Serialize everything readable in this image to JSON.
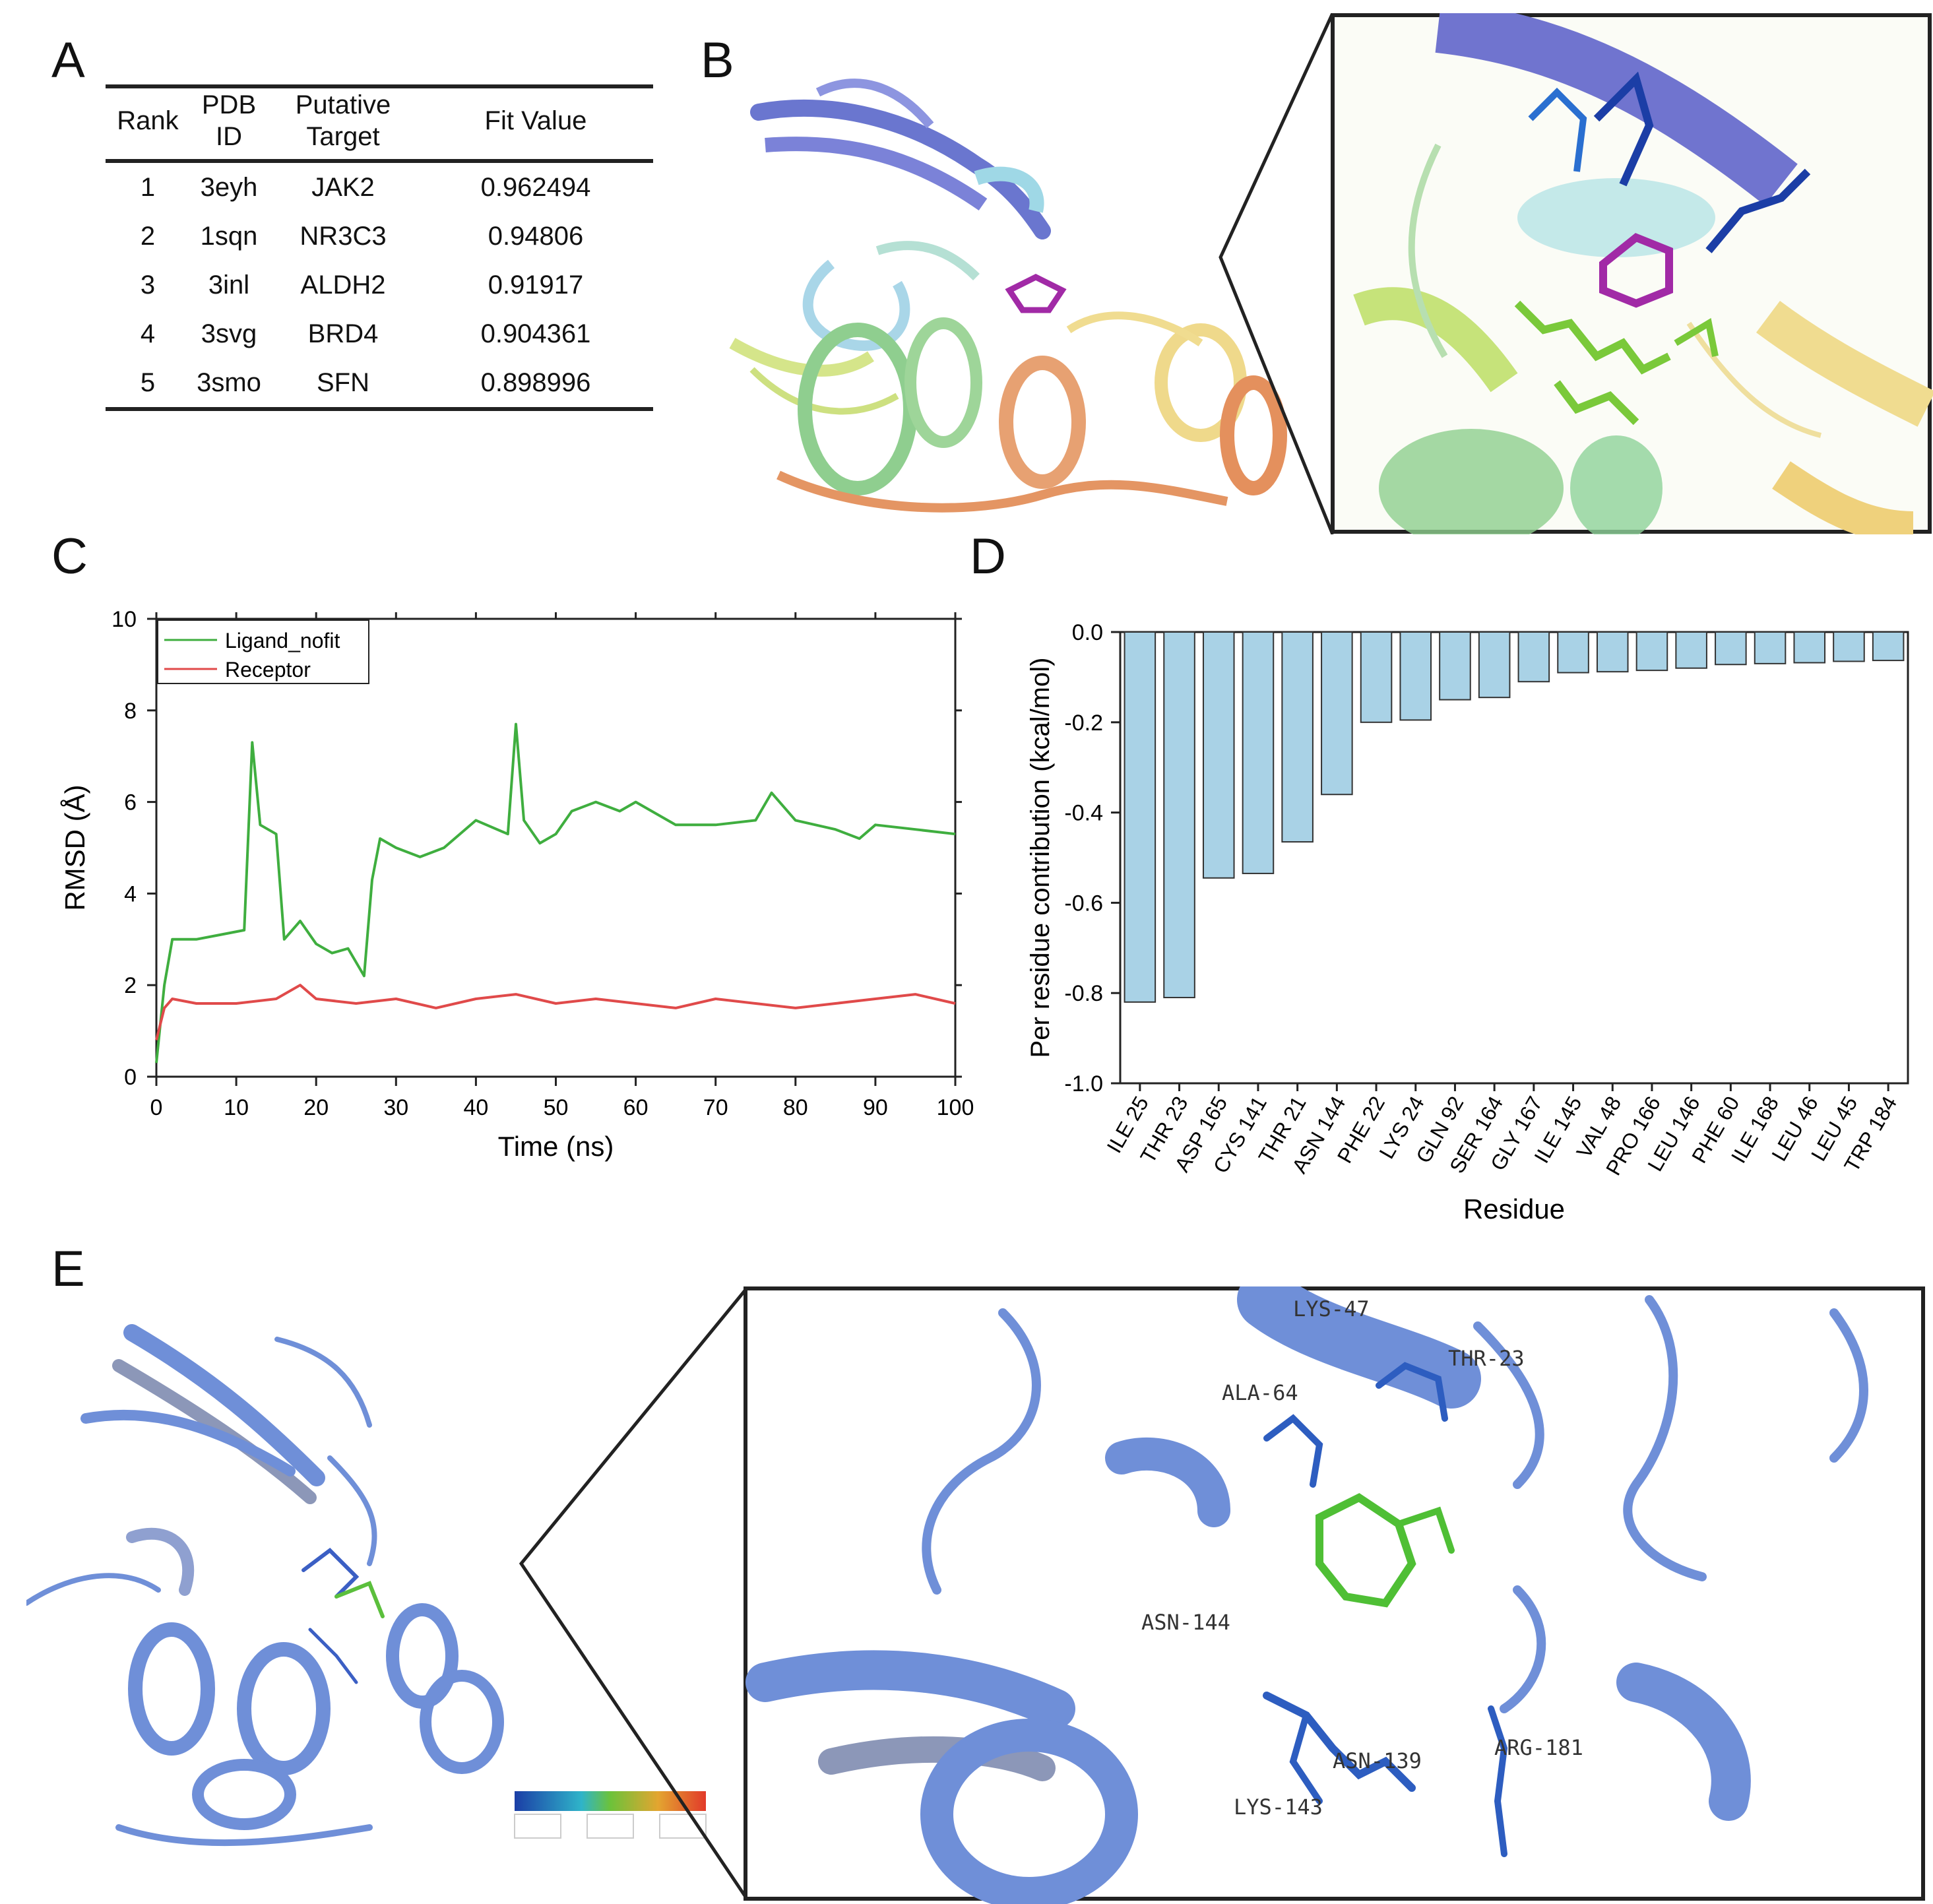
{
  "panels": {
    "a": "A",
    "b": "B",
    "c": "C",
    "d": "D",
    "e": "E"
  },
  "table": {
    "headers": {
      "rank": "Rank",
      "pdb": "PDB ID",
      "target": "Putative Target",
      "fit": "Fit Value"
    },
    "rows": [
      {
        "rank": "1",
        "pdb": "3eyh",
        "target": "JAK2",
        "fit": "0.962494"
      },
      {
        "rank": "2",
        "pdb": "1sqn",
        "target": "NR3C3",
        "fit": "0.94806"
      },
      {
        "rank": "3",
        "pdb": "3inl",
        "target": "ALDH2",
        "fit": "0.91917"
      },
      {
        "rank": "4",
        "pdb": "3svg",
        "target": "BRD4",
        "fit": "0.904361"
      },
      {
        "rank": "5",
        "pdb": "3smo",
        "target": "SFN",
        "fit": "0.898996"
      }
    ]
  },
  "colors": {
    "ligand": "#3fae3f",
    "receptor": "#e04a4a",
    "bar_fill": "#a9d2e6",
    "bar_stroke": "#333333",
    "protein_e": "#6f8fd8",
    "ligand_b": "#a12aa6"
  },
  "chart_data": [
    {
      "type": "line",
      "xlabel": "Time (ns)",
      "ylabel": "RMSD (Å)",
      "xlim": [
        0,
        100
      ],
      "ylim": [
        0,
        10
      ],
      "x_ticks": [
        "0",
        "10",
        "20",
        "30",
        "40",
        "50",
        "60",
        "70",
        "80",
        "90",
        "100"
      ],
      "y_ticks": [
        "0",
        "2",
        "4",
        "6",
        "8",
        "10"
      ],
      "legend": "top-left",
      "series": [
        {
          "name": "Ligand_nofit",
          "x": [
            0,
            1,
            2,
            5,
            8,
            11,
            12,
            13,
            15,
            16,
            18,
            20,
            22,
            24,
            26,
            27,
            28,
            30,
            33,
            36,
            40,
            44,
            45,
            46,
            48,
            50,
            52,
            55,
            58,
            60,
            65,
            70,
            75,
            77,
            80,
            85,
            88,
            90,
            95,
            100
          ],
          "y": [
            0.3,
            2.0,
            3.0,
            3.0,
            3.1,
            3.2,
            7.3,
            5.5,
            5.3,
            3.0,
            3.4,
            2.9,
            2.7,
            2.8,
            2.2,
            4.3,
            5.2,
            5.0,
            4.8,
            5.0,
            5.6,
            5.3,
            7.7,
            5.6,
            5.1,
            5.3,
            5.8,
            6.0,
            5.8,
            6.0,
            5.5,
            5.5,
            5.6,
            6.2,
            5.6,
            5.4,
            5.2,
            5.5,
            5.4,
            5.3
          ]
        },
        {
          "name": "Receptor",
          "x": [
            0,
            1,
            2,
            5,
            10,
            15,
            18,
            20,
            25,
            30,
            35,
            40,
            45,
            50,
            55,
            60,
            65,
            70,
            75,
            80,
            85,
            90,
            95,
            100
          ],
          "y": [
            0.8,
            1.5,
            1.7,
            1.6,
            1.6,
            1.7,
            2.0,
            1.7,
            1.6,
            1.7,
            1.5,
            1.7,
            1.8,
            1.6,
            1.7,
            1.6,
            1.5,
            1.7,
            1.6,
            1.5,
            1.6,
            1.7,
            1.8,
            1.6
          ]
        }
      ]
    },
    {
      "type": "bar",
      "xlabel": "Residue",
      "ylabel": "Per residue contribution (kcal/mol)",
      "ylim": [
        -1.0,
        0.0
      ],
      "y_ticks": [
        "0.0",
        "-0.2",
        "-0.4",
        "-0.6",
        "-0.8",
        "-1.0"
      ],
      "categories": [
        "ILE 25",
        "THR 23",
        "ASP 165",
        "CYS 141",
        "THR 21",
        "ASN 144",
        "PHE 22",
        "LYS 24",
        "GLN 92",
        "SER 164",
        "GLY 167",
        "ILE 145",
        "VAL 48",
        "PRO 166",
        "LEU 146",
        "PHE 60",
        "ILE 168",
        "LEU 46",
        "LEU 45",
        "TRP 184"
      ],
      "values": [
        -0.82,
        -0.81,
        -0.545,
        -0.535,
        -0.465,
        -0.36,
        -0.2,
        -0.195,
        -0.15,
        -0.145,
        -0.11,
        -0.09,
        -0.088,
        -0.085,
        -0.08,
        -0.072,
        -0.07,
        -0.068,
        -0.065,
        -0.063
      ]
    }
  ],
  "residue_labels_e": [
    "LYS-47",
    "THR-23",
    "ALA-64",
    "ASN-144",
    "ASN-139",
    "ARG-181",
    "LYS-143"
  ]
}
